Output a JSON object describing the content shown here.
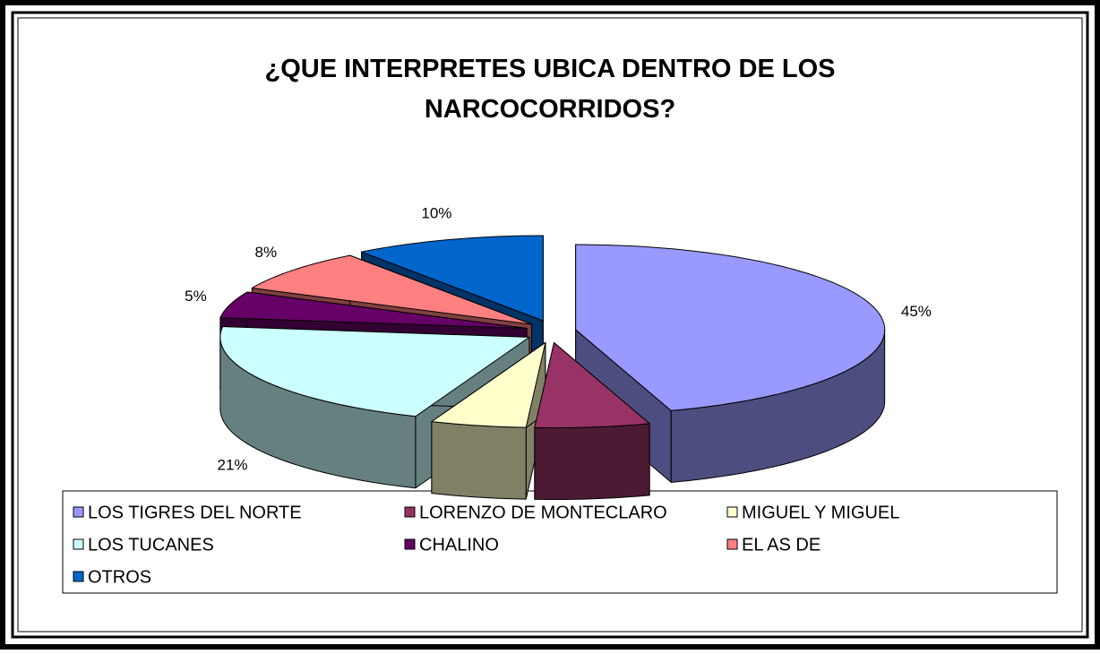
{
  "chart_data": {
    "type": "pie",
    "title": "¿QUE INTERPRETES UBICA DENTRO DE LOS NARCOCORRIDOS?",
    "categories": [
      "LOS TIGRES DEL NORTE",
      "LORENZO DE MONTECLARO",
      "MIGUEL Y MIGUEL",
      "LOS TUCANES",
      "CHALINO",
      "EL AS DE",
      "OTROS"
    ],
    "values": [
      45,
      6,
      5,
      21,
      5,
      8,
      10
    ],
    "value_labels": [
      "45%",
      null,
      null,
      "21%",
      "5%",
      "8%",
      "10%"
    ],
    "colors": [
      "#9999ff",
      "#993366",
      "#ffffcc",
      "#ccffff",
      "#660066",
      "#ff8080",
      "#0066cc"
    ],
    "legend": "bottom"
  }
}
